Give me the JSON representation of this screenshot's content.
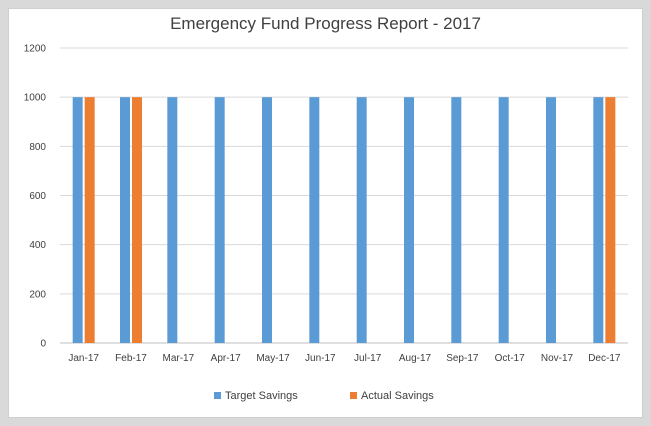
{
  "chart_data": {
    "type": "bar",
    "title": "Emergency Fund Progress Report - 2017",
    "xlabel": "",
    "ylabel": "",
    "categories": [
      "Jan-17",
      "Feb-17",
      "Mar-17",
      "Apr-17",
      "May-17",
      "Jun-17",
      "Jul-17",
      "Aug-17",
      "Sep-17",
      "Oct-17",
      "Nov-17",
      "Dec-17"
    ],
    "series": [
      {
        "name": "Target Savings",
        "color": "#5b9bd5",
        "values": [
          1000,
          1000,
          1000,
          1000,
          1000,
          1000,
          1000,
          1000,
          1000,
          1000,
          1000,
          1000
        ]
      },
      {
        "name": "Actual Savings",
        "color": "#ed7d31",
        "values": [
          1000,
          1000,
          null,
          null,
          null,
          null,
          null,
          null,
          null,
          null,
          null,
          1000
        ]
      }
    ],
    "ylim": [
      0,
      1200
    ],
    "yticks": [
      0,
      200,
      400,
      600,
      800,
      1000,
      1200
    ],
    "grid": true,
    "legend_position": "bottom"
  }
}
